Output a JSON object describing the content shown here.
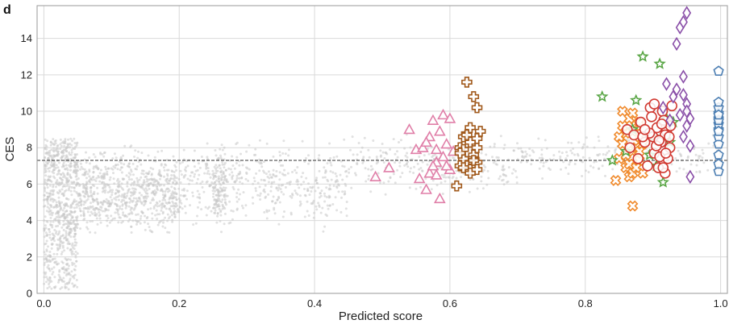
{
  "panel_label": "d",
  "chart_data": {
    "type": "scatter",
    "title": "",
    "xlabel": "Predicted score",
    "ylabel": "CES",
    "xlim": [
      -0.01,
      1.01
    ],
    "ylim": [
      0,
      15.8
    ],
    "xticks": [
      0.0,
      0.2,
      0.4,
      0.6,
      0.8,
      1.0
    ],
    "xtick_labels": [
      "0.0",
      "0.2",
      "0.4",
      "0.6",
      "0.8",
      "1.0"
    ],
    "yticks": [
      0,
      2,
      4,
      6,
      8,
      10,
      12,
      14
    ],
    "ytick_labels": [
      "0",
      "2",
      "4",
      "6",
      "8",
      "10",
      "12",
      "14"
    ],
    "grid": true,
    "threshold": {
      "y": 7.3,
      "style": "dashed",
      "color": "#333333"
    },
    "background_points": {
      "color": "#c8c8c8",
      "description_count_visible": "thousands",
      "density_regions": [
        {
          "x_range": [
            0.0,
            0.05
          ],
          "y_range": [
            0.2,
            8.5
          ],
          "weight": 0.3
        },
        {
          "x_range": [
            0.05,
            0.2
          ],
          "y_range": [
            2.5,
            8.5
          ],
          "weight": 0.3
        },
        {
          "x_range": [
            0.2,
            0.45
          ],
          "y_range": [
            3.0,
            9.0
          ],
          "weight": 0.18
        },
        {
          "x_range": [
            0.25,
            0.27
          ],
          "y_range": [
            3.0,
            9.0
          ],
          "weight": 0.05
        },
        {
          "x_range": [
            0.45,
            0.7
          ],
          "y_range": [
            5.0,
            9.0
          ],
          "weight": 0.1
        },
        {
          "x_range": [
            0.7,
            1.0
          ],
          "y_range": [
            6.0,
            9.0
          ],
          "weight": 0.07
        }
      ]
    },
    "series": [
      {
        "marker": "triangle",
        "color": "#e07fa8",
        "points": [
          [
            0.49,
            6.4
          ],
          [
            0.51,
            6.9
          ],
          [
            0.54,
            9.0
          ],
          [
            0.55,
            7.9
          ],
          [
            0.555,
            6.3
          ],
          [
            0.56,
            8.0
          ],
          [
            0.565,
            5.7
          ],
          [
            0.57,
            6.6
          ],
          [
            0.57,
            8.6
          ],
          [
            0.575,
            9.5
          ],
          [
            0.58,
            6.5
          ],
          [
            0.58,
            7.2
          ],
          [
            0.585,
            5.2
          ],
          [
            0.585,
            8.9
          ],
          [
            0.59,
            9.8
          ],
          [
            0.59,
            7.5
          ],
          [
            0.595,
            8.2
          ],
          [
            0.6,
            9.6
          ],
          [
            0.6,
            6.8
          ],
          [
            0.605,
            7.8
          ],
          [
            0.58,
            7.9
          ],
          [
            0.575,
            7.0
          ],
          [
            0.565,
            8.3
          ],
          [
            0.595,
            7.0
          ]
        ]
      },
      {
        "marker": "cross",
        "color": "#a0581a",
        "points": [
          [
            0.61,
            5.9
          ],
          [
            0.615,
            7.0
          ],
          [
            0.615,
            8.0
          ],
          [
            0.62,
            7.4
          ],
          [
            0.62,
            8.6
          ],
          [
            0.625,
            11.6
          ],
          [
            0.625,
            7.0
          ],
          [
            0.63,
            6.8
          ],
          [
            0.63,
            8.3
          ],
          [
            0.63,
            9.1
          ],
          [
            0.635,
            10.8
          ],
          [
            0.635,
            7.6
          ],
          [
            0.64,
            10.2
          ],
          [
            0.64,
            8.0
          ],
          [
            0.64,
            7.2
          ],
          [
            0.645,
            8.9
          ],
          [
            0.62,
            7.9
          ],
          [
            0.63,
            6.6
          ],
          [
            0.64,
            8.5
          ],
          [
            0.625,
            8.7
          ],
          [
            0.615,
            7.7
          ],
          [
            0.635,
            7.3
          ],
          [
            0.62,
            6.9
          ],
          [
            0.64,
            6.8
          ]
        ]
      },
      {
        "marker": "x-square",
        "color": "#f08a2c",
        "points": [
          [
            0.845,
            6.2
          ],
          [
            0.85,
            7.4
          ],
          [
            0.855,
            10.0
          ],
          [
            0.855,
            8.2
          ],
          [
            0.86,
            6.9
          ],
          [
            0.86,
            8.8
          ],
          [
            0.865,
            6.4
          ],
          [
            0.865,
            9.6
          ],
          [
            0.87,
            4.8
          ],
          [
            0.87,
            7.8
          ],
          [
            0.87,
            6.6
          ],
          [
            0.875,
            9.2
          ],
          [
            0.875,
            8.0
          ],
          [
            0.88,
            8.6
          ],
          [
            0.88,
            7.3
          ],
          [
            0.885,
            6.6
          ],
          [
            0.86,
            7.6
          ],
          [
            0.87,
            8.9
          ],
          [
            0.88,
            9.4
          ],
          [
            0.85,
            8.6
          ],
          [
            0.865,
            7.1
          ],
          [
            0.885,
            8.2
          ],
          [
            0.875,
            6.9
          ],
          [
            0.855,
            9.2
          ],
          [
            0.88,
            7.8
          ],
          [
            0.87,
            9.9
          ]
        ]
      },
      {
        "marker": "star",
        "color": "#5aa646",
        "points": [
          [
            0.825,
            10.8
          ],
          [
            0.84,
            7.3
          ],
          [
            0.86,
            7.8
          ],
          [
            0.87,
            9.0
          ],
          [
            0.875,
            10.6
          ],
          [
            0.885,
            13.0
          ],
          [
            0.9,
            8.6
          ],
          [
            0.91,
            12.6
          ],
          [
            0.915,
            6.1
          ],
          [
            0.92,
            9.6
          ],
          [
            0.925,
            8.3
          ],
          [
            0.93,
            9.4
          ],
          [
            0.895,
            7.6
          ],
          [
            0.905,
            7.0
          ]
        ]
      },
      {
        "marker": "circle",
        "color": "#d13a32",
        "points": [
          [
            0.862,
            9.0
          ],
          [
            0.866,
            8.0
          ],
          [
            0.872,
            8.7
          ],
          [
            0.878,
            7.4
          ],
          [
            0.882,
            9.4
          ],
          [
            0.888,
            8.3
          ],
          [
            0.892,
            7.0
          ],
          [
            0.896,
            10.2
          ],
          [
            0.9,
            8.6
          ],
          [
            0.902,
            7.7
          ],
          [
            0.906,
            9.1
          ],
          [
            0.908,
            6.9
          ],
          [
            0.912,
            8.3
          ],
          [
            0.914,
            10.0
          ],
          [
            0.916,
            9.5
          ],
          [
            0.918,
            6.6
          ],
          [
            0.92,
            8.9
          ],
          [
            0.922,
            7.4
          ],
          [
            0.925,
            8.0
          ],
          [
            0.928,
            10.3
          ],
          [
            0.898,
            9.7
          ],
          [
            0.905,
            8.1
          ],
          [
            0.91,
            7.5
          ],
          [
            0.918,
            8.7
          ],
          [
            0.895,
            8.8
          ],
          [
            0.926,
            9.2
          ],
          [
            0.885,
            8.6
          ],
          [
            0.913,
            9.3
          ],
          [
            0.902,
            10.4
          ],
          [
            0.919,
            7.7
          ],
          [
            0.909,
            8.4
          ],
          [
            0.888,
            9.0
          ],
          [
            0.924,
            8.6
          ],
          [
            0.915,
            6.9
          ]
        ]
      },
      {
        "marker": "diamond",
        "color": "#8a4fa8",
        "points": [
          [
            0.93,
            10.8
          ],
          [
            0.935,
            13.7
          ],
          [
            0.935,
            11.2
          ],
          [
            0.94,
            14.6
          ],
          [
            0.94,
            9.8
          ],
          [
            0.945,
            14.9
          ],
          [
            0.945,
            11.9
          ],
          [
            0.945,
            8.6
          ],
          [
            0.95,
            15.4
          ],
          [
            0.95,
            10.4
          ],
          [
            0.95,
            9.2
          ],
          [
            0.955,
            6.4
          ],
          [
            0.955,
            8.1
          ],
          [
            0.945,
            10.9
          ],
          [
            0.95,
            10.0
          ],
          [
            0.955,
            9.6
          ],
          [
            0.915,
            10.2
          ],
          [
            0.92,
            11.5
          ],
          [
            0.925,
            9.5
          ]
        ]
      },
      {
        "marker": "pentagon",
        "color": "#4d7fb3",
        "points": [
          [
            0.997,
            6.7
          ],
          [
            0.997,
            7.6
          ],
          [
            0.997,
            8.2
          ],
          [
            0.997,
            8.6
          ],
          [
            0.997,
            9.0
          ],
          [
            0.997,
            9.3
          ],
          [
            0.997,
            9.6
          ],
          [
            0.997,
            9.9
          ],
          [
            0.997,
            10.2
          ],
          [
            0.997,
            10.5
          ],
          [
            0.997,
            12.2
          ],
          [
            0.997,
            7.1
          ],
          [
            0.997,
            8.9
          ],
          [
            0.997,
            9.5
          ],
          [
            0.997,
            9.8
          ]
        ]
      }
    ]
  }
}
